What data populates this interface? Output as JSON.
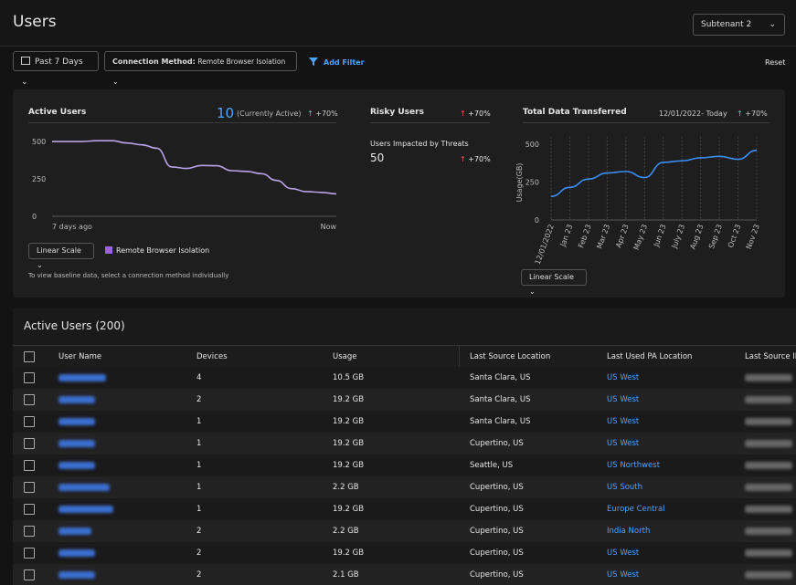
{
  "header": {
    "title": "Users",
    "tenant": "Subtenant 2"
  },
  "filters": {
    "period": "Past 7 Days",
    "connection_label": "Connection Method:",
    "connection_value": "Remote Browser Isolation",
    "add_filter": "Add Filter",
    "reset": "Reset"
  },
  "active_users_card": {
    "title": "Active Users",
    "current": 10,
    "current_label": "(Currently Active)",
    "change": "+70%",
    "scale": "Linear Scale",
    "legend": "Remote Browser Isolation",
    "note": "To view baseline data, select a connection method individually"
  },
  "risky_users_card": {
    "title": "Risky Users",
    "change": "+70%",
    "impacted_label": "Users Impacted by Threats",
    "impacted": 50,
    "impacted_change": "+70%"
  },
  "data_card": {
    "title": "Total Data Transferred",
    "range": "12/01/2022- Today",
    "change": "+70%",
    "scale": "Linear Scale"
  },
  "chart_data": [
    {
      "type": "line",
      "categories": [
        "7 days ago",
        null,
        null,
        null,
        null,
        null,
        null,
        null,
        null,
        null,
        null,
        null,
        null,
        null,
        null,
        null,
        null,
        null,
        null,
        "Now"
      ],
      "series": [
        {
          "name": "Remote Browser Isolation",
          "color": "#b7a3e6",
          "values": [
            500,
            500,
            500,
            505,
            505,
            490,
            478,
            455,
            330,
            320,
            340,
            338,
            305,
            300,
            285,
            240,
            185,
            165,
            160,
            150
          ]
        }
      ],
      "ylim": [
        0,
        560
      ],
      "yticks": [
        0,
        250,
        500
      ],
      "grid": false
    },
    {
      "type": "line",
      "ylabel": "Usage(GB)",
      "categories": [
        "12/01/2022",
        "Jan 23",
        "Feb 23",
        "Mar 23",
        "Apr 23",
        "May 23",
        "Jun 23",
        "July 23",
        "Aug 23",
        "Sep 23",
        "Oct 23",
        "Nov 23"
      ],
      "series": [
        {
          "name": "Usage",
          "color": "#3a8ef6",
          "values": [
            155,
            215,
            270,
            310,
            320,
            280,
            380,
            390,
            410,
            420,
            400,
            460
          ]
        }
      ],
      "ylim": [
        0,
        550
      ],
      "yticks": [
        0,
        250,
        500
      ],
      "grid": true
    }
  ],
  "table": {
    "title": "Active Users",
    "count": "(200)",
    "columns": [
      "User Name",
      "Devices",
      "Usage",
      "Last Source Location",
      "Last Used PA Location",
      "Last Source IP"
    ],
    "rows": [
      [
        "4",
        "10.5 GB",
        "Santa Clara, US",
        "US West"
      ],
      [
        "2",
        "19.2 GB",
        "Santa Clara, US",
        "US West"
      ],
      [
        "1",
        "19.2 GB",
        "Santa Clara, US",
        "US West"
      ],
      [
        "1",
        "19.2 GB",
        "Cupertino, US",
        "US West"
      ],
      [
        "1",
        "19.2 GB",
        "Seattle, US",
        "US Northwest"
      ],
      [
        "1",
        "2.2 GB",
        "Cupertino, US",
        "US South"
      ],
      [
        "1",
        "19.2 GB",
        "Cupertino, US",
        "Europe Central"
      ],
      [
        "2",
        "2.2 GB",
        "Cupertino, US",
        "India North"
      ],
      [
        "2",
        "19.2 GB",
        "Cupertino, US",
        "US West"
      ],
      [
        "2",
        "2.1 GB",
        "Cupertino, US",
        "US West"
      ]
    ]
  }
}
